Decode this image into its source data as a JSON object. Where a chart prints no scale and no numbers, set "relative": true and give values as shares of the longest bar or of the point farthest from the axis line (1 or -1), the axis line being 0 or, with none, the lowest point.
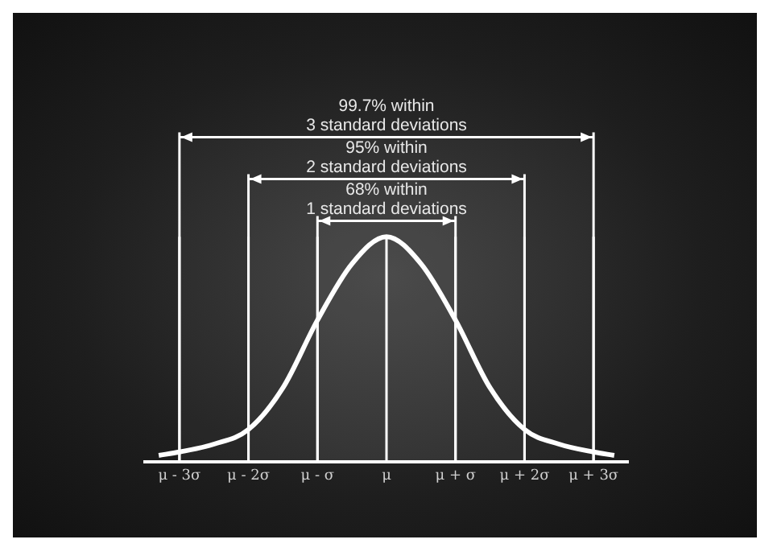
{
  "chart_data": {
    "type": "line",
    "relative": true,
    "x": [
      -3.3,
      -3,
      -2.5,
      -2,
      -1.5,
      -1,
      -0.5,
      0,
      0.5,
      1,
      1.5,
      2,
      2.5,
      3,
      3.3
    ],
    "series": [
      {
        "color": "#ffffff",
        "values": [
          0.03,
          0.045,
          0.08,
          0.145,
          0.33,
          0.63,
          0.88,
          1,
          0.88,
          0.63,
          0.33,
          0.145,
          0.08,
          0.045,
          0.03
        ]
      }
    ],
    "xlim": [
      -3.5,
      3.5
    ],
    "xticks": [
      {
        "value": -3,
        "label": "μ - 3σ"
      },
      {
        "value": -2,
        "label": "μ - 2σ"
      },
      {
        "value": -1,
        "label": "μ - σ"
      },
      {
        "value": 0,
        "label": "μ"
      },
      {
        "value": 1,
        "label": "μ + σ"
      },
      {
        "value": 2,
        "label": "μ + 2σ"
      },
      {
        "value": 3,
        "label": "μ + 3σ"
      }
    ],
    "bands": [
      {
        "axis": "x",
        "from": -3,
        "to": 3,
        "label": "99.7% within\n3 standard deviations",
        "color": "#ffffff"
      },
      {
        "axis": "x",
        "from": -2,
        "to": 2,
        "label": "95% within\n2 standard deviations",
        "color": "#ffffff"
      },
      {
        "axis": "x",
        "from": -1,
        "to": 1,
        "label": "68% within\n1 standard deviations",
        "color": "#ffffff"
      }
    ],
    "grid": "x",
    "legend": false,
    "marker": "none",
    "line_style": "solid"
  }
}
